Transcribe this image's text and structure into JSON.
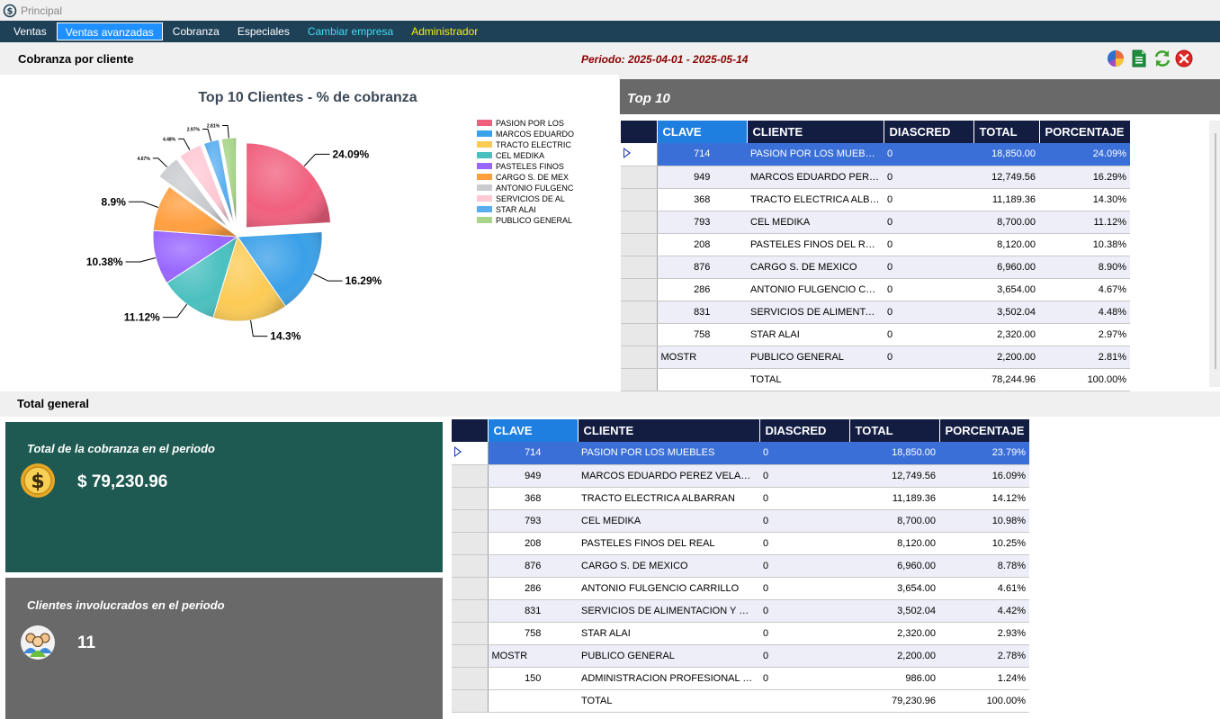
{
  "window": {
    "title": "Principal"
  },
  "menu": [
    {
      "label": "Ventas",
      "style": "normal"
    },
    {
      "label": "Ventas avanzadas",
      "style": "active"
    },
    {
      "label": "Cobranza",
      "style": "normal"
    },
    {
      "label": "Especiales",
      "style": "normal"
    },
    {
      "label": "Cambiar empresa",
      "style": "cyan"
    },
    {
      "label": "Administrador",
      "style": "yellow"
    }
  ],
  "header": {
    "title": "Cobranza por cliente",
    "periodo": "Periodo: 2025-04-01 - 2025-05-14",
    "tools": [
      "pie-chart-icon",
      "excel-export-icon",
      "refresh-icon",
      "close-icon"
    ]
  },
  "chart_data": {
    "type": "pie",
    "title": "Top 10 Clientes - % de cobranza",
    "legend_position": "right",
    "categories": [
      "PASION POR LOS",
      "MARCOS EDUARDO",
      "TRACTO ELECTRIC",
      "CEL MEDIKA",
      "PASTELES FINOS",
      "CARGO S. DE MEX",
      "ANTONIO FULGENC",
      "SERVICIOS DE AL",
      "STAR ALAI",
      "PUBLICO GENERAL"
    ],
    "values": [
      24.09,
      16.29,
      14.3,
      11.12,
      10.38,
      8.9,
      4.67,
      4.48,
      2.97,
      2.81
    ],
    "labels": [
      "24.09%",
      "16.29%",
      "14.3%",
      "11.12%",
      "10.38%",
      "8.9%",
      "4.67%",
      "4.48%",
      "2.97%",
      "2.81%"
    ],
    "colors": [
      "#f0607e",
      "#3aa0e8",
      "#fccb55",
      "#4bc0c0",
      "#9966ff",
      "#ff9f40",
      "#c9cbcf",
      "#ffc8d4",
      "#5aaef0",
      "#a8d58a"
    ],
    "exploded": [
      true,
      false,
      false,
      false,
      false,
      false,
      true,
      true,
      true,
      true
    ]
  },
  "top10": {
    "title": "Top 10",
    "columns": [
      "CLAVE",
      "CLIENTE",
      "DIASCRED",
      "TOTAL",
      "PORCENTAJE"
    ],
    "rows": [
      {
        "clave": "714",
        "cliente": "PASION POR LOS MUEBLES",
        "diascred": "0",
        "total": "18,850.00",
        "porcentaje": "24.09%"
      },
      {
        "clave": "949",
        "cliente": "MARCOS EDUARDO PEREZ VELAZQUEZ",
        "diascred": "0",
        "total": "12,749.56",
        "porcentaje": "16.29%"
      },
      {
        "clave": "368",
        "cliente": "TRACTO ELECTRICA ALBARRAN",
        "diascred": "0",
        "total": "11,189.36",
        "porcentaje": "14.30%"
      },
      {
        "clave": "793",
        "cliente": "CEL MEDIKA",
        "diascred": "0",
        "total": "8,700.00",
        "porcentaje": "11.12%"
      },
      {
        "clave": "208",
        "cliente": "PASTELES FINOS DEL REAL",
        "diascred": "0",
        "total": "8,120.00",
        "porcentaje": "10.38%"
      },
      {
        "clave": "876",
        "cliente": "CARGO S. DE MEXICO",
        "diascred": "0",
        "total": "6,960.00",
        "porcentaje": "8.90%"
      },
      {
        "clave": "286",
        "cliente": "ANTONIO FULGENCIO CARRILLO",
        "diascred": "0",
        "total": "3,654.00",
        "porcentaje": "4.67%"
      },
      {
        "clave": "831",
        "cliente": "SERVICIOS DE ALIMENTACION Y HOSPEDAJE",
        "diascred": "0",
        "total": "3,502.04",
        "porcentaje": "4.48%"
      },
      {
        "clave": "758",
        "cliente": "STAR ALAI",
        "diascred": "0",
        "total": "2,320.00",
        "porcentaje": "2.97%"
      },
      {
        "clave": "MOSTR",
        "cliente": "PUBLICO GENERAL",
        "diascred": "0",
        "total": "2,200.00",
        "porcentaje": "2.81%"
      }
    ],
    "total_row": {
      "clave": "",
      "cliente": "TOTAL",
      "diascred": "",
      "total": "78,244.96",
      "porcentaje": "100.00%"
    }
  },
  "total_general": {
    "title": "Total general",
    "cobranza_card": {
      "title": "Total de la cobranza en el periodo",
      "value": "$ 79,230.96"
    },
    "clientes_card": {
      "title": "Clientes involucrados en el periodo",
      "value": "11"
    },
    "columns": [
      "CLAVE",
      "CLIENTE",
      "DIASCRED",
      "TOTAL",
      "PORCENTAJE"
    ],
    "rows": [
      {
        "clave": "714",
        "cliente": "PASION POR LOS MUEBLES",
        "diascred": "0",
        "total": "18,850.00",
        "porcentaje": "23.79%"
      },
      {
        "clave": "949",
        "cliente": "MARCOS EDUARDO PEREZ VELAZQUEZ",
        "diascred": "0",
        "total": "12,749.56",
        "porcentaje": "16.09%"
      },
      {
        "clave": "368",
        "cliente": "TRACTO ELECTRICA ALBARRAN",
        "diascred": "0",
        "total": "11,189.36",
        "porcentaje": "14.12%"
      },
      {
        "clave": "793",
        "cliente": "CEL MEDIKA",
        "diascred": "0",
        "total": "8,700.00",
        "porcentaje": "10.98%"
      },
      {
        "clave": "208",
        "cliente": "PASTELES FINOS DEL REAL",
        "diascred": "0",
        "total": "8,120.00",
        "porcentaje": "10.25%"
      },
      {
        "clave": "876",
        "cliente": "CARGO S. DE MEXICO",
        "diascred": "0",
        "total": "6,960.00",
        "porcentaje": "8.78%"
      },
      {
        "clave": "286",
        "cliente": "ANTONIO FULGENCIO CARRILLO",
        "diascred": "0",
        "total": "3,654.00",
        "porcentaje": "4.61%"
      },
      {
        "clave": "831",
        "cliente": "SERVICIOS DE ALIMENTACION Y HOSPEDAJE",
        "diascred": "0",
        "total": "3,502.04",
        "porcentaje": "4.42%"
      },
      {
        "clave": "758",
        "cliente": "STAR ALAI",
        "diascred": "0",
        "total": "2,320.00",
        "porcentaje": "2.93%"
      },
      {
        "clave": "MOSTR",
        "cliente": "PUBLICO GENERAL",
        "diascred": "0",
        "total": "2,200.00",
        "porcentaje": "2.78%"
      },
      {
        "clave": "150",
        "cliente": "ADMINISTRACION PROFESIONAL DE NEGOCIOS",
        "diascred": "0",
        "total": "986.00",
        "porcentaje": "1.24%"
      }
    ],
    "total_row": {
      "clave": "",
      "cliente": "TOTAL",
      "diascred": "",
      "total": "79,230.96",
      "porcentaje": "100.00%"
    }
  }
}
